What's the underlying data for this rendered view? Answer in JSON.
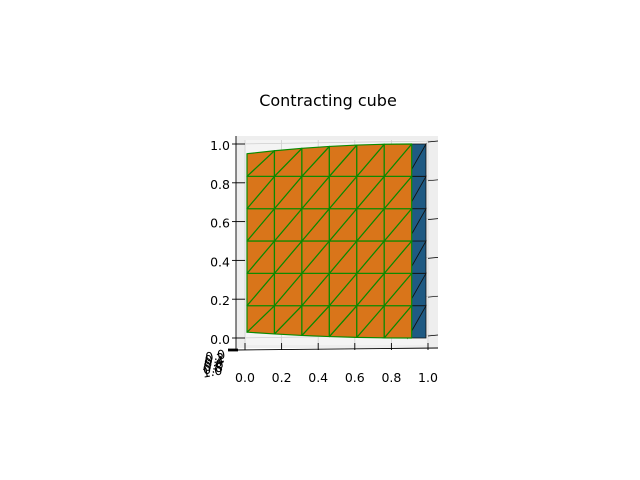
{
  "chart_data": {
    "type": "surface3d",
    "title": "Contracting cube",
    "colors": {
      "front_face": "#d9751a",
      "mesh_edge": "#0a8a00",
      "back_face": "#1f5a83",
      "back_edge": "#111111",
      "pane": "#eeeeee",
      "grid": "#cfcfcf"
    },
    "x_axis": {
      "ticks": [
        0.0,
        0.2,
        0.4,
        0.6,
        0.8,
        1.0
      ],
      "tick_labels": [
        "0.0",
        "0.2",
        "0.4",
        "0.6",
        "0.8",
        "1.0"
      ],
      "lim": [
        0.0,
        1.0
      ]
    },
    "z_axis": {
      "ticks": [
        0.0,
        0.2,
        0.4,
        0.6,
        0.8,
        1.0
      ],
      "tick_labels": [
        "0.0",
        "0.2",
        "0.4",
        "0.6",
        "0.8",
        "1.0"
      ],
      "lim": [
        0.0,
        1.0
      ]
    },
    "y_axis": {
      "tick_labels": [
        "0.0",
        "0.2",
        "0.4",
        "0.6",
        "0.8",
        "1.0"
      ]
    },
    "front_mesh": {
      "divisions": 6,
      "x_extent": [
        0.0,
        0.9
      ],
      "z_extent": [
        0.0,
        1.0
      ],
      "top_curve_dip": 0.05,
      "bottom_curve_dip": 0.03
    },
    "back_mesh": {
      "divisions": 6,
      "x_extent": [
        0.9,
        1.0
      ],
      "z_extent": [
        0.0,
        1.0
      ]
    }
  }
}
